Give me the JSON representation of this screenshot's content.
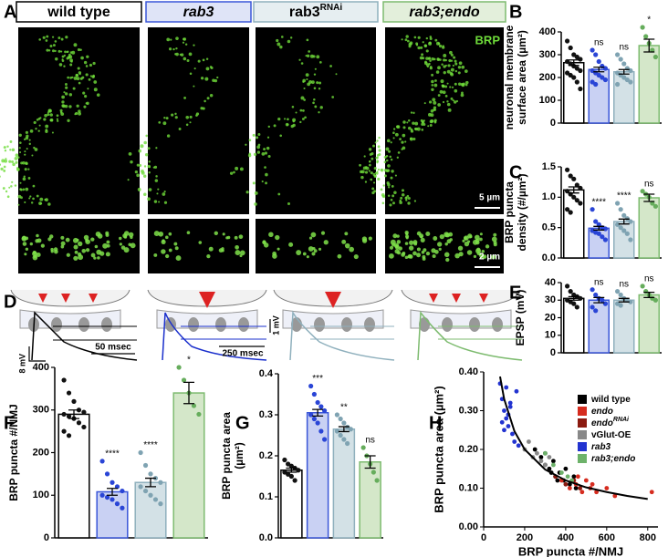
{
  "panel_labels": [
    "A",
    "B",
    "C",
    "D",
    "E",
    "F",
    "G",
    "H"
  ],
  "genotypes": [
    {
      "text": "wild type",
      "italic": false,
      "color": "#000000",
      "fill": "#ffffff"
    },
    {
      "text": "rab3",
      "italic": true,
      "color": "#3a56d8",
      "fill": "#dfe4f7"
    },
    {
      "text": "rab3",
      "sup": "RNAi",
      "italic": false,
      "color": "#8fb0bd",
      "fill": "#e6eef1"
    },
    {
      "text": "rab3;endo",
      "italic": true,
      "color": "#7dbb6f",
      "fill": "#e3efdb"
    }
  ],
  "image_labels": {
    "stain": "BRP",
    "scale_large": "5 µm",
    "scale_small": "2 µm"
  },
  "trace_labels": {
    "v1": "8 mV",
    "t1": "50 msec",
    "t2": "250 msec",
    "v2": "1 mV"
  },
  "chart_data": [
    {
      "type": "bar",
      "ylabel": [
        "neuronal membrane",
        "surface area (µm²)"
      ],
      "categories": [
        null,
        null,
        null,
        null
      ],
      "values": [
        265,
        235,
        225,
        340
      ],
      "errors": [
        12,
        10,
        10,
        28
      ],
      "colors": [
        "#ffffff",
        "#c9d1f3",
        "#d3e1e6",
        "#d4e7c9"
      ],
      "edge_colors": [
        "#000000",
        "#3a56d8",
        "#8fb0bd",
        "#7dbb6f"
      ],
      "point_colors": [
        "#111111",
        "#2a45d6",
        "#7fa3b2",
        "#66ad5c"
      ],
      "points": [
        [
          360,
          330,
          300,
          290,
          280,
          270,
          260,
          250,
          240,
          230,
          220,
          210,
          200,
          180,
          150
        ],
        [
          320,
          300,
          270,
          250,
          240,
          230,
          220,
          210,
          200,
          190,
          180,
          170
        ],
        [
          300,
          280,
          260,
          240,
          230,
          220,
          210,
          200,
          190,
          180,
          170
        ],
        [
          420,
          380,
          350,
          320,
          290
        ]
      ],
      "annotations": [
        null,
        "ns",
        "ns",
        "*"
      ],
      "ylim": [
        0,
        400
      ],
      "yticks": [
        0,
        100,
        200,
        300,
        400
      ]
    },
    {
      "type": "bar",
      "ylabel": [
        "BRP puncta",
        "density (#/µm²)"
      ],
      "categories": [
        null,
        null,
        null,
        null
      ],
      "values": [
        1.12,
        0.49,
        0.6,
        0.99
      ],
      "errors": [
        0.05,
        0.03,
        0.04,
        0.06
      ],
      "colors": [
        "#ffffff",
        "#c9d1f3",
        "#d3e1e6",
        "#d4e7c9"
      ],
      "edge_colors": [
        "#000000",
        "#3a56d8",
        "#8fb0bd",
        "#7dbb6f"
      ],
      "point_colors": [
        "#111111",
        "#2a45d6",
        "#7fa3b2",
        "#66ad5c"
      ],
      "points": [
        [
          1.45,
          1.35,
          1.3,
          1.2,
          1.15,
          1.1,
          1.05,
          1.0,
          0.95,
          0.9,
          0.8,
          0.75
        ],
        [
          0.8,
          0.6,
          0.55,
          0.5,
          0.48,
          0.45,
          0.42,
          0.4,
          0.35,
          0.3
        ],
        [
          0.9,
          0.8,
          0.7,
          0.65,
          0.6,
          0.55,
          0.5,
          0.45,
          0.4,
          0.3
        ],
        [
          1.1,
          1.05,
          1.0,
          0.9,
          0.85
        ]
      ],
      "annotations": [
        null,
        "****",
        "****",
        "ns"
      ],
      "ylim": [
        0,
        1.5
      ],
      "yticks": [
        {
          "value": 0,
          "label": "0.0"
        },
        {
          "value": 0.5,
          "label": "0.5"
        },
        {
          "value": 1,
          "label": "1.0"
        },
        {
          "value": 1.5,
          "label": "1.5"
        }
      ]
    },
    {
      "type": "bar",
      "ylabel": [
        "EPSP (mV)"
      ],
      "categories": [
        null,
        null,
        null,
        null
      ],
      "values": [
        31,
        30,
        30,
        33
      ],
      "errors": [
        1,
        1.5,
        1,
        1.5
      ],
      "colors": [
        "#ffffff",
        "#c9d1f3",
        "#d3e1e6",
        "#d4e7c9"
      ],
      "edge_colors": [
        "#000000",
        "#3a56d8",
        "#8fb0bd",
        "#7dbb6f"
      ],
      "point_colors": [
        "#111111",
        "#2a45d6",
        "#7fa3b2",
        "#66ad5c"
      ],
      "points": [
        [
          38,
          35,
          33,
          32,
          31,
          30,
          29,
          28,
          26
        ],
        [
          36,
          33,
          31,
          30,
          28,
          26,
          24
        ],
        [
          35,
          33,
          31,
          30,
          29,
          28,
          27
        ],
        [
          38,
          35,
          33,
          31,
          30
        ]
      ],
      "annotations": [
        null,
        "ns",
        "ns",
        "ns"
      ],
      "ylim": [
        0,
        40
      ],
      "yticks": [
        0,
        10,
        20,
        30,
        40
      ]
    },
    {
      "type": "bar",
      "ylabel": [
        "BRP puncta #/NMJ"
      ],
      "categories": [
        null,
        null,
        null,
        null
      ],
      "values": [
        290,
        108,
        130,
        340
      ],
      "errors": [
        10,
        8,
        10,
        25
      ],
      "colors": [
        "#ffffff",
        "#c9d1f3",
        "#d3e1e6",
        "#d4e7c9"
      ],
      "edge_colors": [
        "#000000",
        "#3a56d8",
        "#8fb0bd",
        "#7dbb6f"
      ],
      "point_colors": [
        "#111111",
        "#2a45d6",
        "#7fa3b2",
        "#66ad5c"
      ],
      "points": [
        [
          370,
          340,
          320,
          300,
          295,
          290,
          285,
          280,
          270,
          260,
          250,
          240
        ],
        [
          180,
          150,
          130,
          120,
          110,
          100,
          95,
          90,
          80,
          70
        ],
        [
          200,
          170,
          150,
          140,
          130,
          120,
          110,
          100,
          90,
          80
        ],
        [
          400,
          370,
          340,
          310,
          290
        ]
      ],
      "annotations": [
        null,
        "****",
        "****",
        "*"
      ],
      "ylim": [
        0,
        400
      ],
      "yticks": [
        0,
        100,
        200,
        300,
        400
      ]
    },
    {
      "type": "bar",
      "ylabel": [
        "BRP puncta area",
        "(µm²)"
      ],
      "categories": [
        null,
        null,
        null,
        null
      ],
      "values": [
        0.165,
        0.305,
        0.265,
        0.185
      ],
      "errors": [
        0.005,
        0.008,
        0.006,
        0.015
      ],
      "colors": [
        "#ffffff",
        "#c9d1f3",
        "#d3e1e6",
        "#d4e7c9"
      ],
      "edge_colors": [
        "#000000",
        "#3a56d8",
        "#8fb0bd",
        "#7dbb6f"
      ],
      "point_colors": [
        "#111111",
        "#2a45d6",
        "#7fa3b2",
        "#66ad5c"
      ],
      "points": [
        [
          0.19,
          0.18,
          0.175,
          0.17,
          0.165,
          0.16,
          0.155,
          0.15,
          0.14
        ],
        [
          0.37,
          0.35,
          0.33,
          0.32,
          0.31,
          0.3,
          0.29,
          0.28,
          0.26,
          0.24
        ],
        [
          0.3,
          0.29,
          0.28,
          0.27,
          0.265,
          0.26,
          0.25,
          0.24,
          0.23
        ],
        [
          0.22,
          0.2,
          0.18,
          0.16,
          0.14
        ]
      ],
      "annotations": [
        null,
        "***",
        "**",
        "ns"
      ],
      "ylim": [
        0,
        0.4
      ],
      "yticks": [
        {
          "value": 0,
          "label": "0.0"
        },
        {
          "value": 0.1,
          "label": "0.1"
        },
        {
          "value": 0.2,
          "label": "0.2"
        },
        {
          "value": 0.3,
          "label": "0.3"
        },
        {
          "value": 0.4,
          "label": "0.4"
        }
      ]
    },
    {
      "type": "scatter",
      "xlabel": "BRP puncta #/NMJ",
      "ylabel": "BRP puncta area (µm²)",
      "series": [
        {
          "name": "wild type",
          "italic": false,
          "color": "#000000",
          "x": [
            250,
            280,
            300,
            320,
            340,
            350,
            370,
            390,
            400,
            420,
            440,
            450,
            300,
            330,
            360
          ],
          "values": [
            0.2,
            0.18,
            0.16,
            0.15,
            0.17,
            0.13,
            0.14,
            0.12,
            0.15,
            0.11,
            0.13,
            0.1,
            0.19,
            0.14,
            0.12
          ]
        },
        {
          "name": "endo",
          "italic": true,
          "color": "#d62c1f",
          "x": [
            380,
            420,
            450,
            480,
            500,
            520,
            550,
            600,
            640,
            820,
            460,
            530
          ],
          "values": [
            0.12,
            0.1,
            0.11,
            0.09,
            0.12,
            0.1,
            0.09,
            0.1,
            0.08,
            0.09,
            0.13,
            0.11
          ]
        },
        {
          "name": "endo",
          "name_sup": "RNAi",
          "italic": true,
          "color": "#8b1a10",
          "x": [
            350,
            400,
            440,
            470
          ],
          "values": [
            0.13,
            0.11,
            0.12,
            0.1
          ]
        },
        {
          "name": "vGlut-OE",
          "italic": false,
          "color": "#888888",
          "x": [
            200,
            220,
            240,
            260,
            280,
            300,
            320
          ],
          "values": [
            0.2,
            0.22,
            0.18,
            0.19,
            0.17,
            0.16,
            0.18
          ]
        },
        {
          "name": "rab3",
          "italic": true,
          "color": "#2233d0",
          "x": [
            80,
            90,
            100,
            110,
            120,
            130,
            140,
            150,
            160,
            100,
            120,
            90,
            170,
            110,
            130
          ],
          "values": [
            0.37,
            0.33,
            0.3,
            0.28,
            0.26,
            0.32,
            0.24,
            0.22,
            0.35,
            0.25,
            0.29,
            0.27,
            0.21,
            0.36,
            0.31
          ]
        },
        {
          "name": "rab3;endo",
          "italic": true,
          "color": "#6db26a",
          "x": [
            300,
            340,
            380,
            410,
            430
          ],
          "values": [
            0.19,
            0.16,
            0.14,
            0.13,
            0.12
          ]
        }
      ],
      "fit": {
        "x": [
          80,
          100,
          150,
          200,
          300,
          400,
          500,
          600,
          700,
          800
        ],
        "y": [
          0.388,
          0.33,
          0.247,
          0.2,
          0.148,
          0.12,
          0.102,
          0.09,
          0.08,
          0.072
        ]
      },
      "xlim": [
        0,
        850
      ],
      "ylim": [
        0,
        0.4
      ],
      "xticks": [
        0,
        200,
        400,
        600,
        800
      ],
      "yticks": [
        {
          "value": 0,
          "label": "0.00"
        },
        {
          "value": 0.1,
          "label": "0.10"
        },
        {
          "value": 0.2,
          "label": "0.20"
        },
        {
          "value": 0.3,
          "label": "0.30"
        },
        {
          "value": 0.4,
          "label": "0.40"
        }
      ]
    }
  ]
}
